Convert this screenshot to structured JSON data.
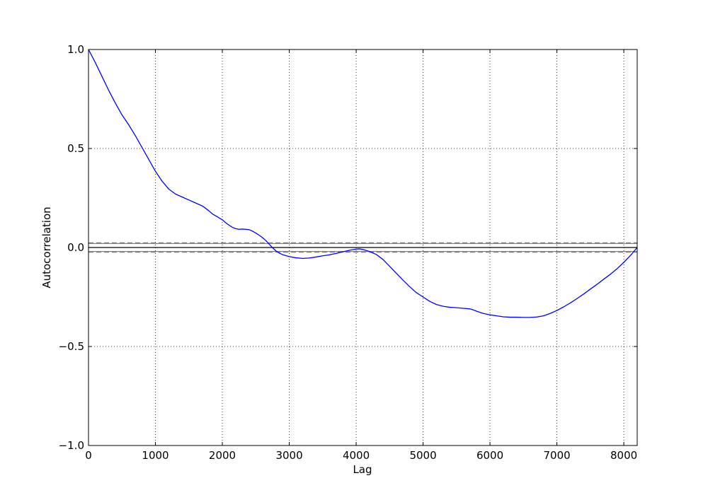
{
  "chart_data": {
    "type": "line",
    "title": "",
    "xlabel": "Lag",
    "ylabel": "Autocorrelation",
    "xlim": [
      0,
      8200
    ],
    "ylim": [
      -1.0,
      1.0
    ],
    "x_ticks": [
      0,
      1000,
      2000,
      3000,
      4000,
      5000,
      6000,
      7000,
      8000
    ],
    "x_tick_labels": [
      "0",
      "1000",
      "2000",
      "3000",
      "4000",
      "5000",
      "6000",
      "7000",
      "8000"
    ],
    "y_ticks": [
      -1.0,
      -0.5,
      0.0,
      0.5,
      1.0
    ],
    "y_tick_labels": [
      "−1.0",
      "−0.5",
      "0.0",
      "0.5",
      "1.0"
    ],
    "grid": true,
    "legend": "none",
    "series": [
      {
        "color": "#0000ff",
        "x": [
          0,
          100,
          200,
          300,
          400,
          500,
          600,
          700,
          800,
          900,
          1000,
          1100,
          1200,
          1300,
          1400,
          1500,
          1600,
          1700,
          1750,
          1800,
          1850,
          1900,
          2000,
          2050,
          2100,
          2150,
          2200,
          2250,
          2300,
          2350,
          2400,
          2450,
          2500,
          2550,
          2600,
          2650,
          2700,
          2750,
          2800,
          2850,
          2900,
          2950,
          3000,
          3100,
          3200,
          3300,
          3400,
          3500,
          3600,
          3700,
          3800,
          3900,
          4000,
          4050,
          4100,
          4200,
          4300,
          4400,
          4500,
          4600,
          4700,
          4800,
          4900,
          5000,
          5100,
          5200,
          5300,
          5400,
          5500,
          5600,
          5700,
          5750,
          5800,
          5900,
          6000,
          6100,
          6200,
          6300,
          6400,
          6500,
          6600,
          6700,
          6800,
          6900,
          7000,
          7100,
          7200,
          7300,
          7400,
          7500,
          7600,
          7700,
          7800,
          7900,
          8000,
          8100,
          8200
        ],
        "values": [
          1.0,
          0.935,
          0.865,
          0.795,
          0.73,
          0.67,
          0.62,
          0.565,
          0.505,
          0.445,
          0.385,
          0.335,
          0.295,
          0.27,
          0.255,
          0.24,
          0.225,
          0.21,
          0.198,
          0.185,
          0.17,
          0.16,
          0.14,
          0.125,
          0.113,
          0.102,
          0.095,
          0.092,
          0.093,
          0.092,
          0.09,
          0.083,
          0.073,
          0.062,
          0.05,
          0.035,
          0.017,
          -0.001,
          -0.017,
          -0.028,
          -0.036,
          -0.041,
          -0.046,
          -0.052,
          -0.055,
          -0.053,
          -0.048,
          -0.042,
          -0.037,
          -0.03,
          -0.022,
          -0.014,
          -0.008,
          -0.007,
          -0.01,
          -0.02,
          -0.035,
          -0.06,
          -0.095,
          -0.13,
          -0.165,
          -0.198,
          -0.228,
          -0.25,
          -0.272,
          -0.288,
          -0.297,
          -0.302,
          -0.304,
          -0.307,
          -0.31,
          -0.315,
          -0.322,
          -0.333,
          -0.34,
          -0.345,
          -0.35,
          -0.352,
          -0.352,
          -0.353,
          -0.353,
          -0.351,
          -0.345,
          -0.333,
          -0.318,
          -0.3,
          -0.28,
          -0.258,
          -0.235,
          -0.21,
          -0.186,
          -0.16,
          -0.135,
          -0.107,
          -0.075,
          -0.04,
          0.0
        ]
      }
    ],
    "reference_lines": [
      {
        "y": 0.0,
        "style": "solid",
        "color": "#000000"
      },
      {
        "y": 0.02,
        "style": "solid",
        "color": "#808080"
      },
      {
        "y": -0.02,
        "style": "solid",
        "color": "#808080"
      },
      {
        "y": 0.0236,
        "style": "dashed",
        "color": "#808080"
      },
      {
        "y": -0.0236,
        "style": "dashed",
        "color": "#808080"
      }
    ]
  }
}
